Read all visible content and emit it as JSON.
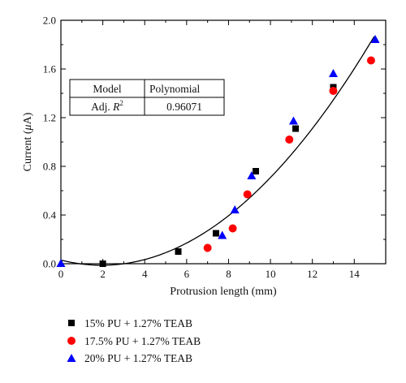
{
  "chart_data": {
    "type": "scatter",
    "xlabel": "Protrusion length (mm)",
    "ylabel_prefix": "Current (",
    "ylabel_mu": "μ",
    "ylabel_unit": "A)",
    "xlim": [
      0,
      15.5
    ],
    "ylim": [
      0,
      2.0
    ],
    "xticks": [
      "0",
      "2",
      "4",
      "6",
      "8",
      "10",
      "12",
      "14"
    ],
    "yticks": [
      "0.0",
      "0.4",
      "0.8",
      "1.2",
      "1.6",
      "2.0"
    ],
    "xtick_values": [
      0,
      2,
      4,
      6,
      8,
      10,
      12,
      14
    ],
    "ytick_values": [
      0,
      0.4,
      0.8,
      1.2,
      1.6,
      2.0
    ],
    "series": [
      {
        "name": "15% PU + 1.27% TEAB",
        "marker": "square",
        "color": "#000000",
        "x": [
          2.0,
          5.6,
          7.4,
          9.3,
          11.2,
          13.0
        ],
        "y": [
          0.0,
          0.1,
          0.25,
          0.76,
          1.11,
          1.45
        ]
      },
      {
        "name": "17.5% PU + 1.27% TEAB",
        "marker": "circle",
        "color": "#ff0000",
        "x": [
          7.0,
          8.2,
          8.9,
          10.9,
          13.0,
          14.8
        ],
        "y": [
          0.13,
          0.29,
          0.57,
          1.02,
          1.42,
          1.67
        ]
      },
      {
        "name": "20% PU + 1.27% TEAB",
        "marker": "triangle",
        "color": "#0000ff",
        "x": [
          0.0,
          7.7,
          8.3,
          9.1,
          11.1,
          13.0,
          15.0
        ],
        "y": [
          0.0,
          0.23,
          0.44,
          0.72,
          1.17,
          1.56,
          1.84
        ]
      }
    ],
    "fit": {
      "label": "Polynomial",
      "coeffs": [
        0.03,
        -0.0435,
        0.01113
      ],
      "x_range": [
        0,
        14.95
      ]
    },
    "stats_table": {
      "header": [
        "Model",
        "Polynomial"
      ],
      "row_label_prefix": "Adj. ",
      "row_label_var": "R",
      "row_label_sup": "2",
      "row_value": "0.96071"
    },
    "legend_position": "below"
  }
}
